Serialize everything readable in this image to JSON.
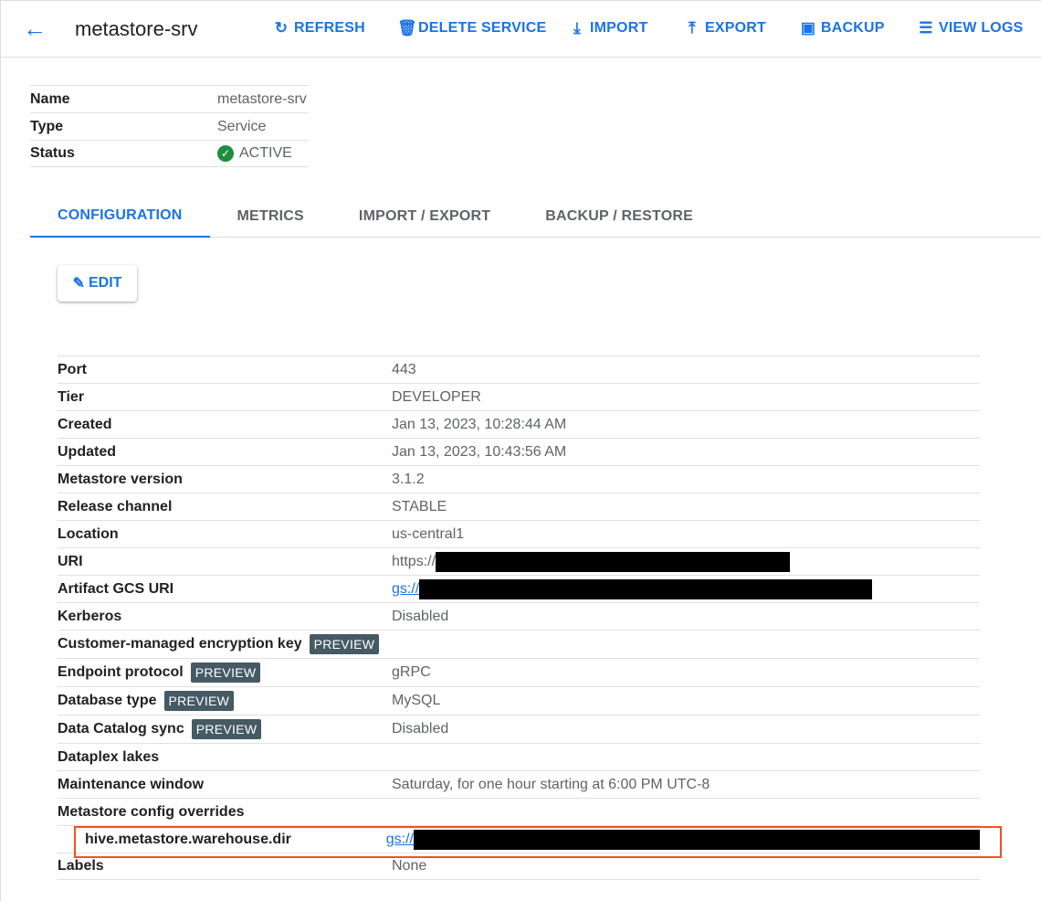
{
  "header": {
    "title": "metastore-srv",
    "buttons": [
      {
        "label": "REFRESH",
        "icon": "refresh-icon",
        "glyph": "↻"
      },
      {
        "label": "DELETE SERVICE",
        "icon": "trash-icon",
        "glyph": "🗑"
      },
      {
        "label": "IMPORT",
        "icon": "download-icon",
        "glyph": "⤓"
      },
      {
        "label": "EXPORT",
        "icon": "upload-icon",
        "glyph": "⤒"
      },
      {
        "label": "BACKUP",
        "icon": "backup-icon",
        "glyph": "▣"
      },
      {
        "label": "VIEW LOGS",
        "icon": "list-icon",
        "glyph": "☰"
      }
    ]
  },
  "summary": [
    {
      "label": "Name",
      "value": "metastore-srv"
    },
    {
      "label": "Type",
      "value": "Service"
    },
    {
      "label": "Status",
      "value": "ACTIVE",
      "icon": "check-circle-icon"
    }
  ],
  "colors": {
    "accent": "#1a73e8",
    "active": "#1e8e3e",
    "highlight": "#f4511e",
    "badge": "#455a64"
  },
  "tabs": [
    "CONFIGURATION",
    "METRICS",
    "IMPORT / EXPORT",
    "BACKUP / RESTORE"
  ],
  "active_tab": 0,
  "edit_label": "EDIT",
  "preview_label": "PREVIEW",
  "config": [
    {
      "label": "Port",
      "value": "443"
    },
    {
      "label": "Tier",
      "value": "DEVELOPER"
    },
    {
      "label": "Created",
      "value": "Jan 13, 2023, 10:28:44 AM"
    },
    {
      "label": "Updated",
      "value": "Jan 13, 2023, 10:43:56 AM"
    },
    {
      "label": "Metastore version",
      "value": "3.1.2"
    },
    {
      "label": "Release channel",
      "value": "STABLE"
    },
    {
      "label": "Location",
      "value": "us-central1"
    },
    {
      "label": "URI",
      "value": "https://",
      "redacted": true
    },
    {
      "label": "Artifact GCS URI",
      "value": "gs://",
      "link": true,
      "redacted": true
    },
    {
      "label": "Kerberos",
      "value": "Disabled"
    },
    {
      "label": "Customer-managed encryption key",
      "value": "",
      "preview": true
    },
    {
      "label": "Endpoint protocol",
      "value": "gRPC",
      "preview": true
    },
    {
      "label": "Database type",
      "value": "MySQL",
      "preview": true
    },
    {
      "label": "Data Catalog sync",
      "value": "Disabled",
      "preview": true
    },
    {
      "label": "Dataplex lakes",
      "value": ""
    },
    {
      "label": "Maintenance window",
      "value": "Saturday, for one hour starting at 6:00 PM UTC-8"
    },
    {
      "label": "Metastore config overrides",
      "value": ""
    },
    {
      "label": "hive.metastore.warehouse.dir",
      "value": "gs://",
      "link": true,
      "redacted": true,
      "sub": true,
      "highlighted": true
    },
    {
      "label": "Labels",
      "value": "None"
    }
  ]
}
